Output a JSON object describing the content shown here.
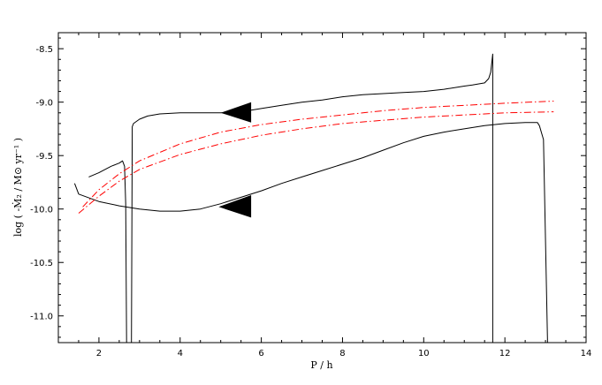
{
  "chart_data": {
    "type": "line",
    "xlabel": "P / h",
    "ylabel": "log ( -Ṁ₂ / M⊙ yr⁻¹ )",
    "xlim": [
      1,
      14
    ],
    "ylim": [
      -11.25,
      -8.35
    ],
    "xticks": [
      2,
      4,
      6,
      8,
      10,
      12,
      14
    ],
    "yticks": [
      -11.0,
      -10.5,
      -10.0,
      -9.5,
      -9.0,
      -8.5
    ],
    "xtick_labels": [
      "2",
      "4",
      "6",
      "8",
      "10",
      "12",
      "14"
    ],
    "ytick_labels": [
      "-11.0",
      "-10.5",
      "-10.0",
      "-9.5",
      "-9.0",
      "-8.5"
    ],
    "grid": false,
    "series": [
      {
        "style": "solid",
        "color": "#000000",
        "x": [
          11.7,
          11.7,
          11.65,
          11.6,
          11.5,
          11.2,
          11.0,
          10.5,
          10.0,
          9.5,
          9.0,
          8.5,
          8.0,
          7.5,
          7.0,
          6.5,
          6.0,
          5.5,
          5.0,
          4.5,
          4.0,
          3.5,
          3.2,
          3.0,
          2.85,
          2.82,
          2.8
        ],
        "y": [
          -11.25,
          -8.55,
          -8.72,
          -8.78,
          -8.82,
          -8.84,
          -8.85,
          -8.88,
          -8.9,
          -8.91,
          -8.92,
          -8.93,
          -8.95,
          -8.98,
          -9.0,
          -9.03,
          -9.06,
          -9.09,
          -9.1,
          -9.1,
          -9.1,
          -9.11,
          -9.13,
          -9.16,
          -9.2,
          -9.23,
          -11.25
        ]
      },
      {
        "style": "solid",
        "color": "#000000",
        "x": [
          13.05,
          12.95,
          12.85,
          12.8,
          12.5,
          12.0,
          11.5,
          11.0,
          10.5,
          10.0,
          9.5,
          9.0,
          8.5,
          8.0,
          7.5,
          7.0,
          6.5,
          6.0,
          5.5,
          5.0,
          4.5,
          4.0,
          3.5,
          3.0,
          2.5,
          2.0,
          1.5,
          1.4
        ],
        "y": [
          -11.25,
          -9.35,
          -9.22,
          -9.19,
          -9.19,
          -9.2,
          -9.22,
          -9.25,
          -9.28,
          -9.32,
          -9.38,
          -9.45,
          -9.52,
          -9.58,
          -9.64,
          -9.7,
          -9.76,
          -9.83,
          -9.89,
          -9.95,
          -10.0,
          -10.02,
          -10.02,
          -10.0,
          -9.97,
          -9.93,
          -9.86,
          -9.76
        ]
      },
      {
        "style": "solid",
        "color": "#000000",
        "x": [
          1.75,
          2.0,
          2.3,
          2.5,
          2.58,
          2.63,
          2.66,
          2.68
        ],
        "y": [
          -9.7,
          -9.66,
          -9.6,
          -9.57,
          -9.55,
          -9.6,
          -9.95,
          -11.25
        ]
      },
      {
        "style": "dash-dot",
        "color": "#ff0000",
        "x": [
          1.5,
          2.0,
          2.5,
          3.0,
          4.0,
          5.0,
          6.0,
          7.0,
          8.0,
          9.0,
          10.0,
          11.0,
          12.0,
          13.2
        ],
        "y": [
          -10.04,
          -9.88,
          -9.74,
          -9.63,
          -9.49,
          -9.39,
          -9.31,
          -9.25,
          -9.2,
          -9.17,
          -9.14,
          -9.12,
          -9.1,
          -9.09
        ]
      },
      {
        "style": "dash-dot",
        "color": "#ff0000",
        "x": [
          1.6,
          2.0,
          2.5,
          3.0,
          4.0,
          5.0,
          6.0,
          7.0,
          8.0,
          9.0,
          10.0,
          11.0,
          12.0,
          13.2
        ],
        "y": [
          -9.98,
          -9.82,
          -9.67,
          -9.55,
          -9.39,
          -9.28,
          -9.21,
          -9.16,
          -9.12,
          -9.08,
          -9.05,
          -9.03,
          -9.01,
          -8.99
        ]
      }
    ],
    "arrows": [
      {
        "tip": [
          5.0,
          -9.1
        ],
        "tail_top": [
          5.75,
          -9.0
        ],
        "tail_bottom": [
          5.75,
          -9.19
        ],
        "color": "#000000"
      },
      {
        "tip": [
          4.95,
          -9.98
        ],
        "tail_top": [
          5.75,
          -9.87
        ],
        "tail_bottom": [
          5.75,
          -10.08
        ],
        "color": "#000000"
      }
    ]
  }
}
